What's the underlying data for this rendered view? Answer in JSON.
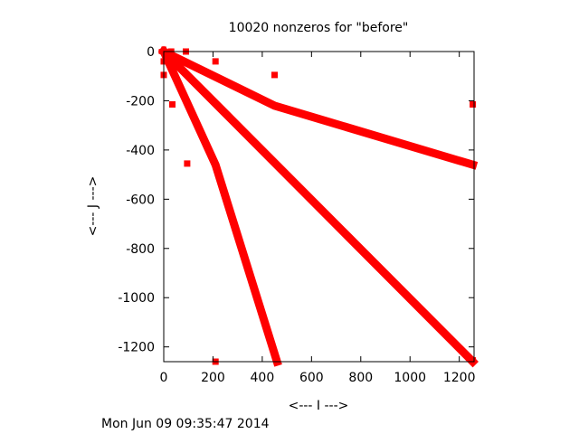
{
  "chart_data": {
    "type": "scatter",
    "title": "10020 nonzeros for \"before\"",
    "xlabel": "<--- I --->",
    "ylabel": "<--- J --->",
    "xlim": [
      0,
      1260
    ],
    "ylim": [
      -1260,
      0
    ],
    "xticks": [
      0,
      200,
      400,
      600,
      800,
      1000,
      1200
    ],
    "yticks": [
      0,
      -200,
      -400,
      -600,
      -800,
      -1000,
      -1200
    ],
    "grid": false,
    "marker_color": "#ff0000",
    "bands": [
      {
        "points": [
          [
            0,
            0
          ],
          [
            450,
            -220
          ],
          [
            1255,
            -460
          ]
        ]
      },
      {
        "points": [
          [
            0,
            0
          ],
          [
            1255,
            -1260
          ]
        ]
      },
      {
        "points": [
          [
            0,
            0
          ],
          [
            210,
            -460
          ],
          [
            460,
            -1260
          ]
        ]
      }
    ],
    "points": [
      [
        0,
        0
      ],
      [
        30,
        0
      ],
      [
        90,
        0
      ],
      [
        0,
        -40
      ],
      [
        0,
        -95
      ],
      [
        35,
        -215
      ],
      [
        210,
        -40
      ],
      [
        450,
        -95
      ],
      [
        1255,
        -215
      ],
      [
        95,
        -455
      ],
      [
        1255,
        -460
      ],
      [
        210,
        -1260
      ],
      [
        460,
        -1260
      ],
      [
        1255,
        -1255
      ]
    ]
  },
  "footer": "Mon Jun 09 09:35:47 2014"
}
